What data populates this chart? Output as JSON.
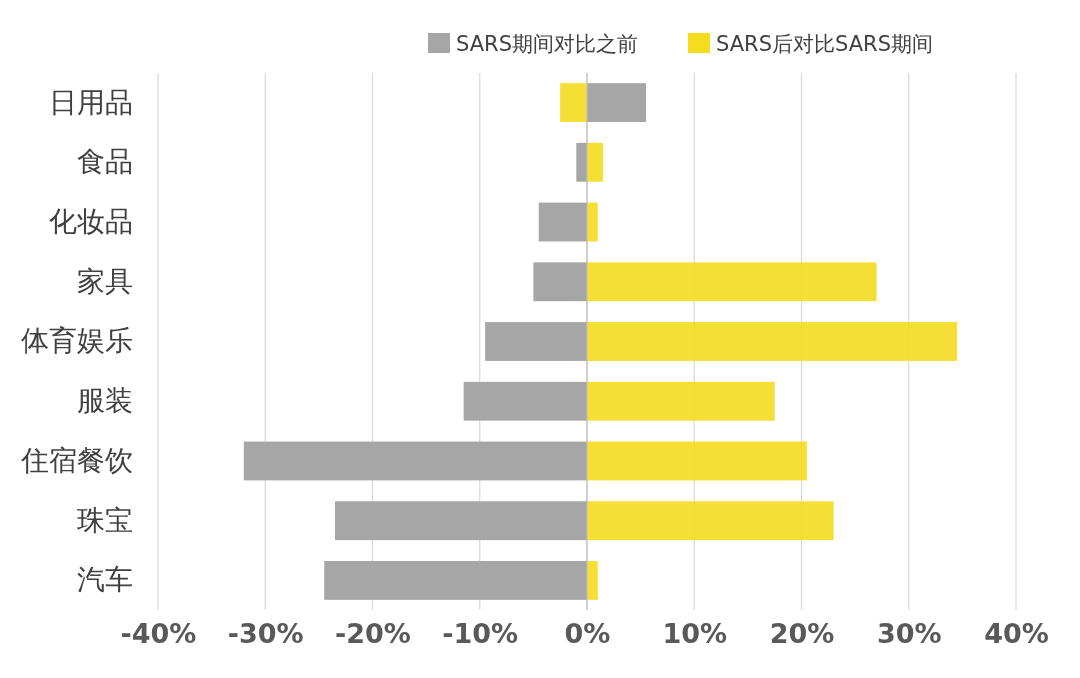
{
  "chart_data": {
    "type": "bar",
    "orientation": "horizontal",
    "categories": [
      "日用品",
      "食品",
      "化妆品",
      "家具",
      "体育娱乐",
      "服装",
      "住宿餐饮",
      "珠宝",
      "汽车"
    ],
    "series": [
      {
        "name": "SARS期间对比之前",
        "color": "#a6a6a6",
        "values": [
          5.5,
          -1,
          -4.5,
          -5,
          -9.5,
          -11.5,
          -32,
          -23.5,
          -24.5
        ]
      },
      {
        "name": "SARS后对比SARS期间",
        "color": "#f5dc1e",
        "values": [
          -2.5,
          1.5,
          1,
          27,
          34.5,
          17.5,
          20.5,
          23,
          1
        ]
      }
    ],
    "xlim": [
      -40,
      40
    ],
    "xticks": [
      {
        "value": -40,
        "label": "-40%"
      },
      {
        "value": -30,
        "label": "-30%"
      },
      {
        "value": -20,
        "label": "-20%"
      },
      {
        "value": -10,
        "label": "-10%"
      },
      {
        "value": 0,
        "label": "0%"
      },
      {
        "value": 10,
        "label": "10%"
      },
      {
        "value": 20,
        "label": "20%"
      },
      {
        "value": 30,
        "label": "30%"
      },
      {
        "value": 40,
        "label": "40%"
      }
    ],
    "grid": "x",
    "legend": "top right"
  }
}
